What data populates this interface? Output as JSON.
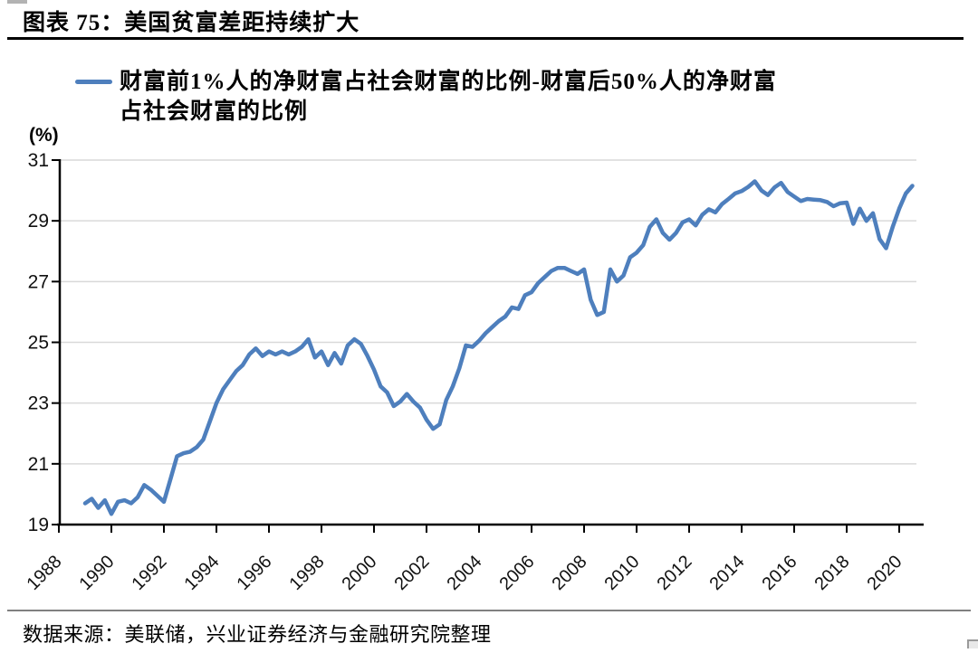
{
  "header": {
    "title": "图表 75：美国贫富差距持续扩大"
  },
  "legend": {
    "line1": "财富前1%人的净财富占社会财富的比例-财富后50%人的净财富",
    "line2": "占社会财富的比例",
    "marker_color": "#4E7FBD"
  },
  "footer": {
    "source": "数据来源：美联储，兴业证券经济与金融研究院整理"
  },
  "colors": {
    "line": "#4E7FBD",
    "grid": "#D9D9D9",
    "axis": "#000000",
    "title_rule": "#000000",
    "source_rule": "#808080"
  },
  "chart_data": {
    "type": "line",
    "title": "图表 75：美国贫富差距持续扩大",
    "ylabel": "(%)",
    "ylim": [
      19,
      31
    ],
    "yticks": [
      19,
      21,
      23,
      25,
      27,
      29,
      31
    ],
    "xticks": [
      1988,
      1990,
      1992,
      1994,
      1996,
      1998,
      2000,
      2002,
      2004,
      2006,
      2008,
      2010,
      2012,
      2014,
      2016,
      2018,
      2020
    ],
    "grid": true,
    "legend_position": "top-left",
    "source": "数据来源：美联储，兴业证券经济与金融研究院整理",
    "series": [
      {
        "name": "财富前1%人的净财富占社会财富的比例-财富后50%人的净财富占社会财富的比例",
        "color": "#4E7FBD",
        "start_year": 1989,
        "frequency": "quarterly",
        "values": [
          19.7,
          19.85,
          19.55,
          19.8,
          19.35,
          19.75,
          19.8,
          19.7,
          19.9,
          20.3,
          20.15,
          19.95,
          19.75,
          20.5,
          21.25,
          21.35,
          21.4,
          21.55,
          21.8,
          22.4,
          23.0,
          23.45,
          23.75,
          24.05,
          24.25,
          24.6,
          24.8,
          24.55,
          24.7,
          24.6,
          24.7,
          24.6,
          24.7,
          24.85,
          25.1,
          24.5,
          24.7,
          24.25,
          24.65,
          24.3,
          24.9,
          25.1,
          24.95,
          24.55,
          24.1,
          23.55,
          23.35,
          22.9,
          23.05,
          23.3,
          23.05,
          22.85,
          22.45,
          22.15,
          22.3,
          23.1,
          23.55,
          24.15,
          24.9,
          24.85,
          25.05,
          25.3,
          25.5,
          25.7,
          25.85,
          26.15,
          26.1,
          26.55,
          26.65,
          26.95,
          27.15,
          27.35,
          27.45,
          27.45,
          27.35,
          27.25,
          27.4,
          26.4,
          25.9,
          26.0,
          27.4,
          27.0,
          27.2,
          27.8,
          27.95,
          28.2,
          28.8,
          29.05,
          28.6,
          28.38,
          28.6,
          28.95,
          29.05,
          28.85,
          29.2,
          29.38,
          29.28,
          29.55,
          29.72,
          29.9,
          29.98,
          30.12,
          30.3,
          30.0,
          29.85,
          30.1,
          30.25,
          29.95,
          29.8,
          29.65,
          29.72,
          29.7,
          29.68,
          29.62,
          29.48,
          29.58,
          29.6,
          28.9,
          29.4,
          29.0,
          29.25,
          28.4,
          28.1,
          28.8,
          29.4,
          29.9,
          30.15
        ]
      }
    ]
  }
}
